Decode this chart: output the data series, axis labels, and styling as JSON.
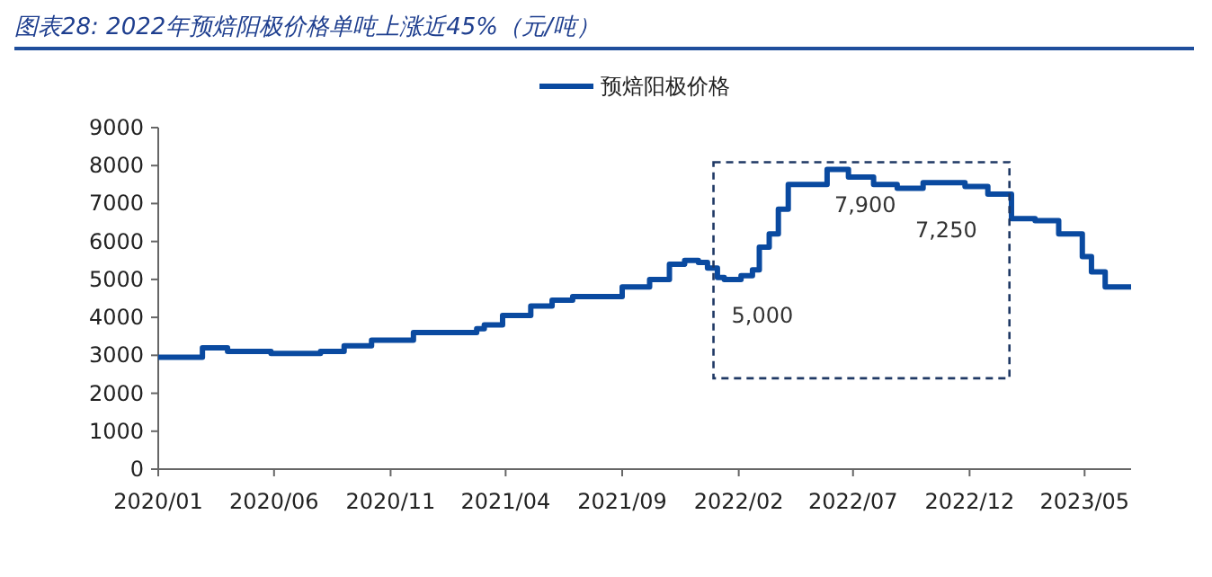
{
  "chart_data": {
    "type": "step",
    "title": "图表28:  2022年预焙阳极价格单吨上涨近45%（元/吨）",
    "x": [
      "2020-01-01",
      "2020-02-28",
      "2020-04-01",
      "2020-05-28",
      "2020-08-01",
      "2020-09-01",
      "2020-10-07",
      "2020-12-01",
      "2021-02-22",
      "2021-03-04",
      "2021-03-28",
      "2021-05-04",
      "2021-06-01",
      "2021-06-28",
      "2021-09-01",
      "2021-10-07",
      "2021-11-02",
      "2021-11-22",
      "2021-12-10",
      "2021-12-22",
      "2022-01-04",
      "2022-01-13",
      "2022-02-04",
      "2022-02-19",
      "2022-02-28",
      "2022-03-13",
      "2022-03-25",
      "2022-04-07",
      "2022-05-28",
      "2022-06-25",
      "2022-07-28",
      "2022-08-28",
      "2022-10-01",
      "2022-11-25",
      "2022-12-25",
      "2023-01-25",
      "2023-02-25",
      "2023-03-28",
      "2023-04-28",
      "2023-05-10",
      "2023-05-28",
      "2023-07-01"
    ],
    "series": [
      {
        "name": "预焙阳极价格",
        "color": "#0a4aa0",
        "values": [
          2950,
          3200,
          3100,
          3050,
          3100,
          3250,
          3400,
          3600,
          3700,
          3800,
          4050,
          4300,
          4450,
          4550,
          4800,
          5000,
          5400,
          5500,
          5450,
          5300,
          5050,
          5000,
          5100,
          5250,
          5850,
          6200,
          6850,
          7500,
          7900,
          7700,
          7500,
          7400,
          7550,
          7450,
          7250,
          6600,
          6550,
          6200,
          5600,
          5200,
          4800,
          4800
        ]
      }
    ],
    "xlim": [
      "2020-01-01",
      "2023-07-01"
    ],
    "xticks": [
      {
        "value": "2020-01-01",
        "label": "2020/01"
      },
      {
        "value": "2020-06-01",
        "label": "2020/06"
      },
      {
        "value": "2020-11-01",
        "label": "2020/11"
      },
      {
        "value": "2021-04-01",
        "label": "2021/04"
      },
      {
        "value": "2021-09-01",
        "label": "2021/09"
      },
      {
        "value": "2022-02-01",
        "label": "2022/02"
      },
      {
        "value": "2022-07-01",
        "label": "2022/07"
      },
      {
        "value": "2022-12-01",
        "label": "2022/12"
      },
      {
        "value": "2023-05-01",
        "label": "2023/05"
      }
    ],
    "ylim": [
      0,
      9000
    ],
    "yticks": [
      0,
      1000,
      2000,
      3000,
      4000,
      5000,
      6000,
      7000,
      8000,
      9000
    ],
    "legend": "top",
    "annotations": [
      {
        "text": "5,000",
        "x": "2022-01-13",
        "y": 5000
      },
      {
        "text": "7,900",
        "x": "2022-05-28",
        "y": 7900
      },
      {
        "text": "7,250",
        "x": "2022-12-25",
        "y": 7250
      }
    ]
  }
}
